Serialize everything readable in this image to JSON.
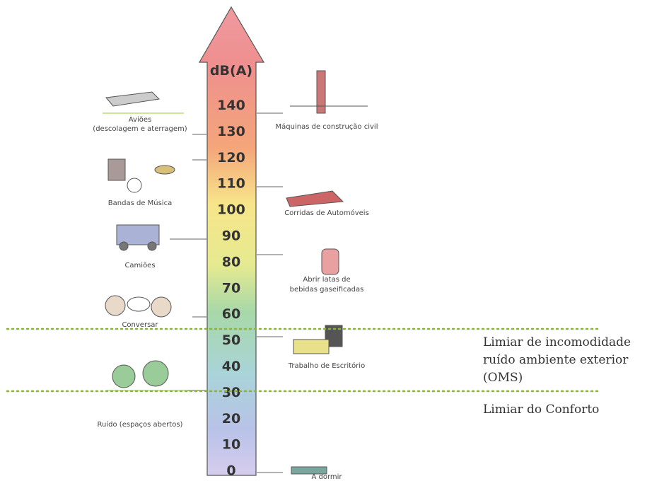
{
  "scale": {
    "unit": "dB(A)",
    "levels": [
      140,
      130,
      120,
      110,
      100,
      90,
      80,
      70,
      60,
      50,
      40,
      30,
      20,
      10,
      0
    ]
  },
  "left_items": [
    {
      "label": [
        "Aviões",
        "(descolagem e aterragem)"
      ]
    },
    {
      "label": [
        "Bandas de Música"
      ]
    },
    {
      "label": [
        "Camiões"
      ]
    },
    {
      "label": [
        "Conversar"
      ]
    },
    {
      "label": [
        "Ruído (espaços abertos)"
      ]
    }
  ],
  "right_items": [
    {
      "label": [
        "Máquinas de construção civil"
      ]
    },
    {
      "label": [
        "Corridas de Automóveis"
      ]
    },
    {
      "label": [
        "Abrir latas de",
        "bebidas gaseificadas"
      ]
    },
    {
      "label": [
        "Trabalho de Escritório"
      ]
    },
    {
      "label": [
        "A dormir"
      ]
    }
  ],
  "thresholds": [
    {
      "label": [
        "Limiar de incomodidade",
        "ruído ambiente exterior",
        "(OMS)"
      ]
    },
    {
      "label": [
        "Limiar do Conforto"
      ]
    }
  ]
}
